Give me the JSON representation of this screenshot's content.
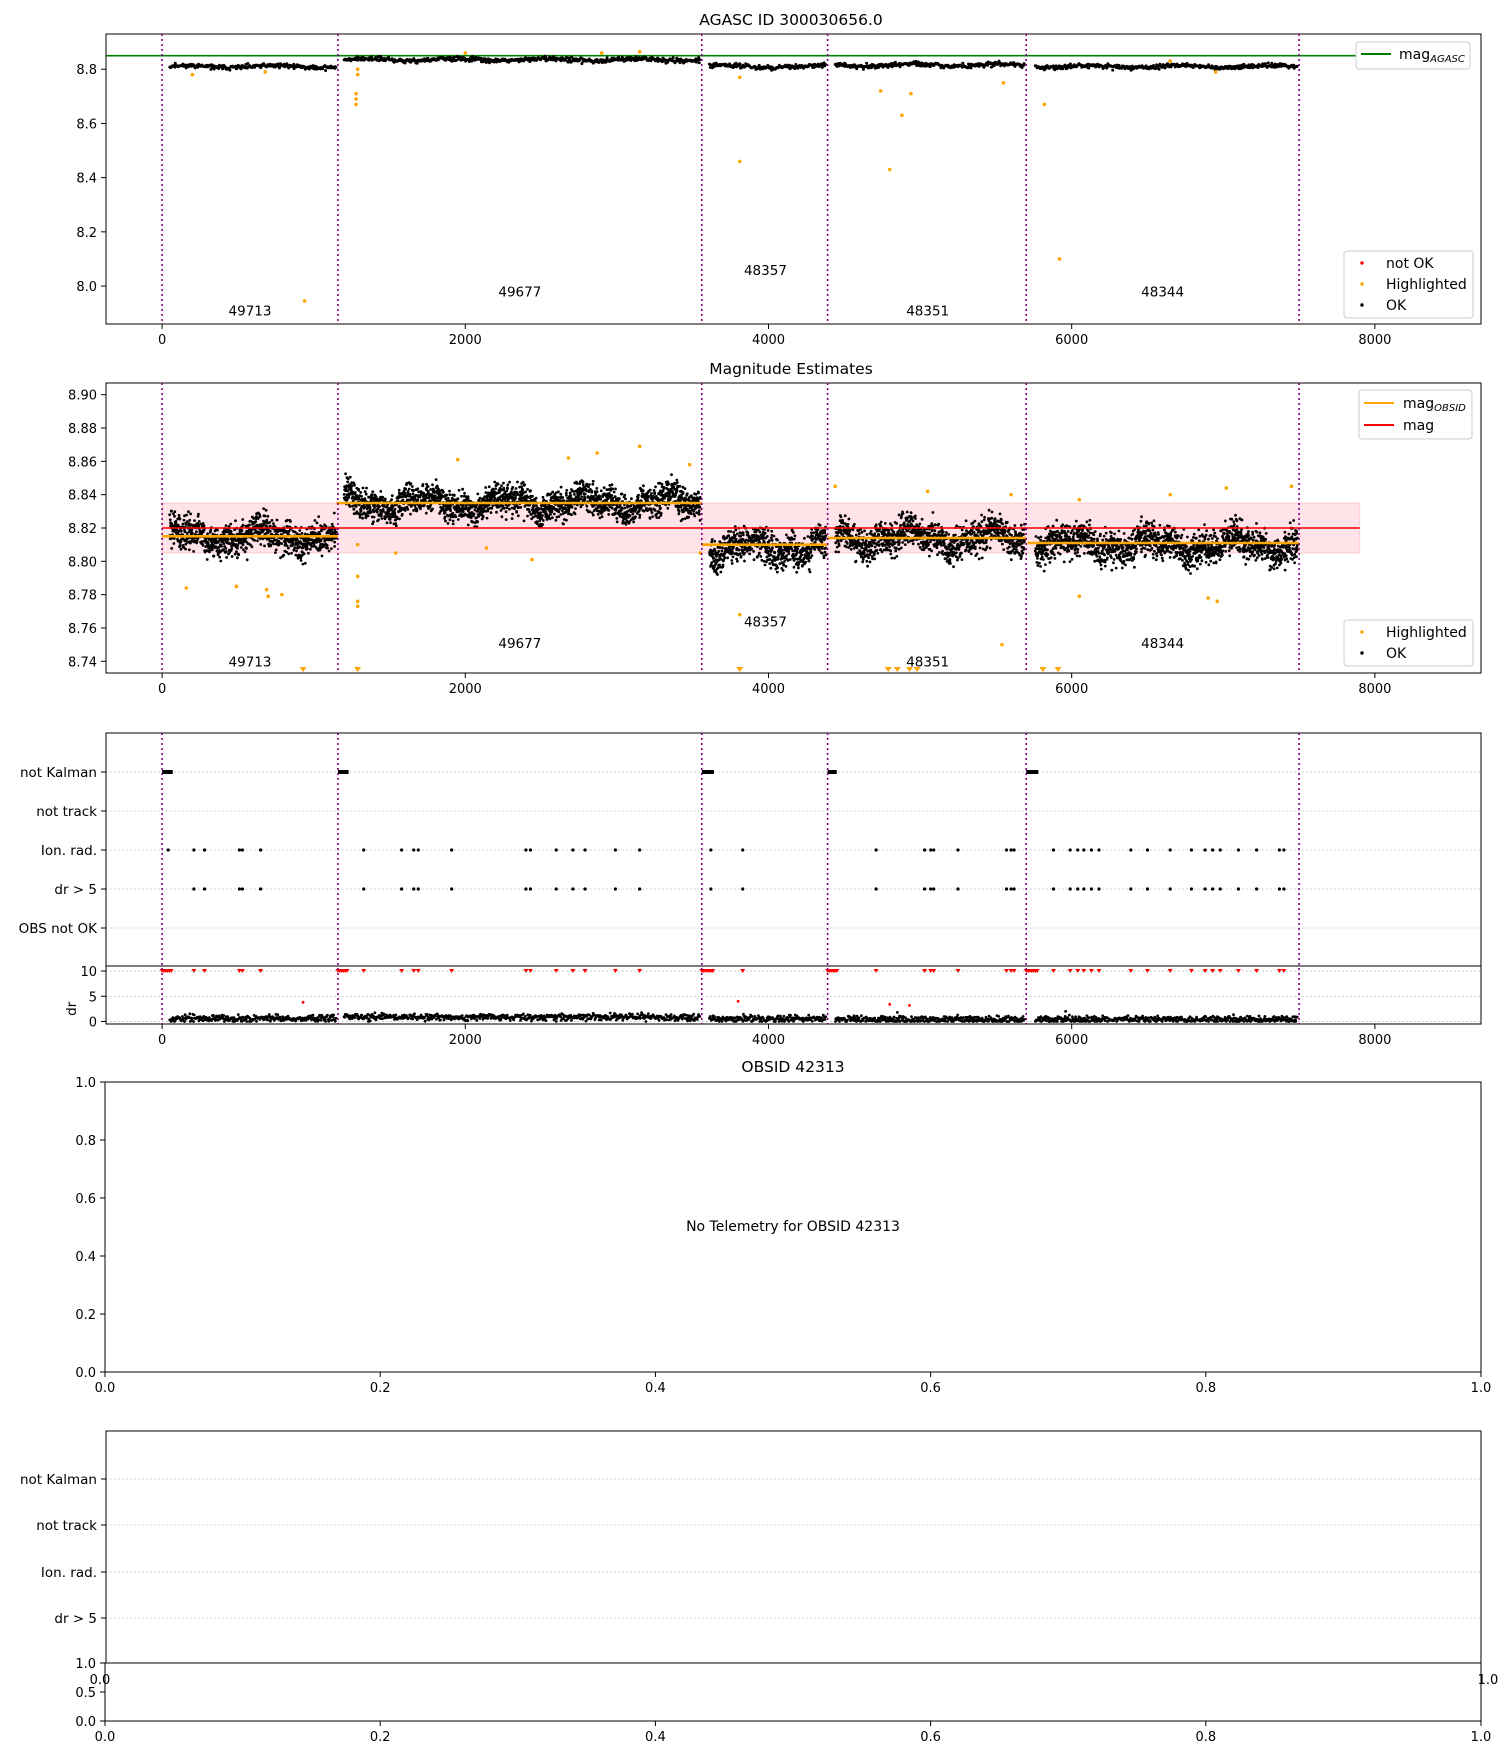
{
  "colors": {
    "ok": "#000000",
    "highlighted": "#ffa500",
    "not_ok": "#ff0000",
    "mag_agasc": "#007f00",
    "mag_line": "#ff0000",
    "mag_obsid": "#ffa500",
    "obsid_divider": "#800080",
    "band_fill": "#ffc0cb",
    "grid": "#b0b0b0"
  },
  "chart_data": [
    {
      "id": "agasc",
      "type": "scatter",
      "title": "AGASC ID 300030656.0",
      "xlim": [
        -370,
        8700
      ],
      "ylim": [
        7.86,
        8.93
      ],
      "xticks": [
        0,
        2000,
        4000,
        6000,
        8000
      ],
      "xtick_labels": [
        "0",
        "2000",
        "4000",
        "6000",
        "8000"
      ],
      "yticks": [
        8.0,
        8.2,
        8.4,
        8.6,
        8.8
      ],
      "ytick_labels": [
        "8.0",
        "8.2",
        "8.4",
        "8.6",
        "8.8"
      ],
      "mag_agasc": 8.85,
      "obsid_boundaries": [
        0,
        1160,
        3560,
        4390,
        5700,
        7500
      ],
      "obsid_labels": [
        {
          "label": "49713",
          "x": 580,
          "y": 7.91
        },
        {
          "label": "49677",
          "x": 2360,
          "y": 7.98
        },
        {
          "label": "48357",
          "x": 3980,
          "y": 8.06
        },
        {
          "label": "48351",
          "x": 5050,
          "y": 7.91
        },
        {
          "label": "48344",
          "x": 6600,
          "y": 7.98
        }
      ],
      "segments": [
        {
          "x0": 50,
          "x1": 1150,
          "level": 8.81,
          "noise": 0.012
        },
        {
          "x0": 1200,
          "x1": 3550,
          "level": 8.835,
          "noise": 0.012
        },
        {
          "x0": 3610,
          "x1": 4380,
          "level": 8.81,
          "noise": 0.012
        },
        {
          "x0": 4440,
          "x1": 5690,
          "level": 8.815,
          "noise": 0.012
        },
        {
          "x0": 5760,
          "x1": 7490,
          "level": 8.81,
          "noise": 0.012
        }
      ],
      "highlighted_points": [
        {
          "x": 940,
          "y": 7.945
        },
        {
          "x": 1280,
          "y": 8.69
        },
        {
          "x": 1280,
          "y": 8.71
        },
        {
          "x": 1280,
          "y": 8.67
        },
        {
          "x": 1290,
          "y": 8.78
        },
        {
          "x": 1290,
          "y": 8.8
        },
        {
          "x": 3810,
          "y": 8.46
        },
        {
          "x": 3810,
          "y": 8.77
        },
        {
          "x": 4740,
          "y": 8.72
        },
        {
          "x": 4800,
          "y": 8.43
        },
        {
          "x": 4880,
          "y": 8.63
        },
        {
          "x": 4940,
          "y": 8.71
        },
        {
          "x": 5550,
          "y": 8.75
        },
        {
          "x": 5820,
          "y": 8.67
        },
        {
          "x": 5920,
          "y": 8.1
        },
        {
          "x": 200,
          "y": 8.78
        },
        {
          "x": 680,
          "y": 8.79
        },
        {
          "x": 2000,
          "y": 8.86
        },
        {
          "x": 2900,
          "y": 8.86
        },
        {
          "x": 3150,
          "y": 8.865
        },
        {
          "x": 6650,
          "y": 8.83
        },
        {
          "x": 6950,
          "y": 8.79
        }
      ],
      "legend_top": [
        {
          "label": "mag",
          "sub": "AGASC"
        }
      ],
      "legend_bottom": [
        "not OK",
        "Highlighted",
        "OK"
      ]
    },
    {
      "id": "estimates",
      "type": "scatter",
      "title": "Magnitude Estimates",
      "xlim": [
        -370,
        8700
      ],
      "ylim": [
        8.733,
        8.907
      ],
      "xticks": [
        0,
        2000,
        4000,
        6000,
        8000
      ],
      "xtick_labels": [
        "0",
        "2000",
        "4000",
        "6000",
        "8000"
      ],
      "yticks": [
        8.74,
        8.76,
        8.78,
        8.8,
        8.82,
        8.84,
        8.86,
        8.88,
        8.9
      ],
      "ytick_labels": [
        "8.74",
        "8.76",
        "8.78",
        "8.80",
        "8.82",
        "8.84",
        "8.86",
        "8.88",
        "8.90"
      ],
      "mag": 8.82,
      "mag_band": [
        8.805,
        8.835
      ],
      "mag_line_x": [
        0,
        7900
      ],
      "obsid_boundaries": [
        0,
        1160,
        3560,
        4390,
        5700,
        7500
      ],
      "obsid_labels": [
        {
          "label": "49713",
          "x": 580,
          "y": 8.74
        },
        {
          "label": "49677",
          "x": 2360,
          "y": 8.751
        },
        {
          "label": "48357",
          "x": 3980,
          "y": 8.764
        },
        {
          "label": "48351",
          "x": 5050,
          "y": 8.74
        },
        {
          "label": "48344",
          "x": 6600,
          "y": 8.751
        }
      ],
      "segments": [
        {
          "x0": 50,
          "x1": 1150,
          "level": 8.815,
          "noise": 0.011,
          "mag_obsid": 8.815
        },
        {
          "x0": 1200,
          "x1": 3550,
          "level": 8.835,
          "noise": 0.01,
          "mag_obsid": 8.835
        },
        {
          "x0": 3610,
          "x1": 4380,
          "level": 8.808,
          "noise": 0.011,
          "mag_obsid": 8.81
        },
        {
          "x0": 4440,
          "x1": 5690,
          "level": 8.814,
          "noise": 0.011,
          "mag_obsid": 8.814
        },
        {
          "x0": 5760,
          "x1": 7490,
          "level": 8.81,
          "noise": 0.011,
          "mag_obsid": 8.811
        }
      ],
      "highlighted_points": [
        {
          "x": 160,
          "y": 8.784
        },
        {
          "x": 490,
          "y": 8.785
        },
        {
          "x": 690,
          "y": 8.783
        },
        {
          "x": 700,
          "y": 8.779
        },
        {
          "x": 790,
          "y": 8.78
        },
        {
          "x": 1290,
          "y": 8.791
        },
        {
          "x": 1290,
          "y": 8.776
        },
        {
          "x": 1290,
          "y": 8.773
        },
        {
          "x": 1290,
          "y": 8.81
        },
        {
          "x": 1540,
          "y": 8.805
        },
        {
          "x": 1950,
          "y": 8.861
        },
        {
          "x": 2140,
          "y": 8.808
        },
        {
          "x": 2440,
          "y": 8.801
        },
        {
          "x": 2680,
          "y": 8.862
        },
        {
          "x": 2870,
          "y": 8.865
        },
        {
          "x": 3150,
          "y": 8.869
        },
        {
          "x": 3480,
          "y": 8.858
        },
        {
          "x": 3550,
          "y": 8.805
        },
        {
          "x": 3810,
          "y": 8.768
        },
        {
          "x": 4440,
          "y": 8.845
        },
        {
          "x": 5050,
          "y": 8.842
        },
        {
          "x": 5540,
          "y": 8.75
        },
        {
          "x": 5600,
          "y": 8.84
        },
        {
          "x": 6050,
          "y": 8.779
        },
        {
          "x": 6050,
          "y": 8.837
        },
        {
          "x": 6650,
          "y": 8.84
        },
        {
          "x": 6900,
          "y": 8.778
        },
        {
          "x": 6960,
          "y": 8.776
        },
        {
          "x": 7020,
          "y": 8.844
        },
        {
          "x": 7450,
          "y": 8.845
        }
      ],
      "lower_markers_x": [
        930,
        1290,
        3810,
        4790,
        4850,
        4930,
        4980,
        5810,
        5910
      ],
      "legend_top": [
        {
          "label": "mag",
          "sub": "OBSID"
        },
        {
          "label": "mag",
          "sub": ""
        }
      ],
      "legend_bottom": [
        "Highlighted",
        "OK"
      ]
    },
    {
      "id": "flags",
      "type": "scatter",
      "xlim": [
        -370,
        8700
      ],
      "ylim_dr": [
        -0.5,
        11
      ],
      "xticks": [
        0,
        2000,
        4000,
        6000,
        8000
      ],
      "xtick_labels": [
        "0",
        "2000",
        "4000",
        "6000",
        "8000"
      ],
      "flag_rows": [
        "not Kalman",
        "not track",
        "Ion. rad.",
        "dr > 5",
        "OBS not OK"
      ],
      "dr_yticks": [
        0,
        5,
        10
      ],
      "dr_ytick_labels": [
        "0",
        "5",
        "10"
      ],
      "dr_ylabel": "dr",
      "obsid_boundaries": [
        0,
        1160,
        3560,
        4390,
        5700,
        7500
      ],
      "not_kalman_ranges": [
        [
          0,
          70
        ],
        [
          1160,
          1230
        ],
        [
          3560,
          3640
        ],
        [
          4390,
          4450
        ],
        [
          5700,
          5780
        ]
      ],
      "ion_rad_x": [
        40,
        210,
        280,
        510,
        530,
        650,
        1330,
        1580,
        1660,
        1690,
        1910,
        2400,
        2430,
        2600,
        2710,
        2790,
        2990,
        3150,
        3620,
        3830,
        4710,
        5030,
        5070,
        5090,
        5250,
        5570,
        5600,
        5620,
        5880,
        5990,
        6040,
        6080,
        6130,
        6180,
        6390,
        6500,
        6650,
        6790,
        6880,
        6930,
        6980,
        7100,
        7220,
        7370,
        7400
      ],
      "dr_gt5_x": [
        210,
        280,
        510,
        530,
        650,
        1330,
        1580,
        1660,
        1690,
        1910,
        2400,
        2430,
        2600,
        2710,
        2790,
        2990,
        3150,
        3620,
        3830,
        4710,
        5030,
        5070,
        5090,
        5250,
        5570,
        5600,
        5620,
        5880,
        5990,
        6040,
        6080,
        6130,
        6180,
        6390,
        6500,
        6650,
        6790,
        6880,
        6930,
        6980,
        7100,
        7220,
        7370,
        7400
      ],
      "dr_outliers": [
        {
          "x": 930,
          "y": 3.8
        },
        {
          "x": 3800,
          "y": 4.0
        },
        {
          "x": 4800,
          "y": 3.4
        },
        {
          "x": 4930,
          "y": 3.2
        },
        {
          "x": 4850,
          "y": 1.8
        },
        {
          "x": 5960,
          "y": 2.0
        }
      ],
      "dr_segments": [
        {
          "x0": 50,
          "x1": 1150,
          "level": 0.6
        },
        {
          "x0": 1200,
          "x1": 3550,
          "level": 0.9
        },
        {
          "x0": 3610,
          "x1": 4380,
          "level": 0.5
        },
        {
          "x0": 4440,
          "x1": 5690,
          "level": 0.4
        },
        {
          "x0": 5760,
          "x1": 7490,
          "level": 0.4
        }
      ]
    },
    {
      "id": "obsid",
      "type": "scatter",
      "title": "OBSID 42313",
      "xlim": [
        0,
        1
      ],
      "ylim": [
        0,
        1
      ],
      "xticks": [
        0,
        0.2,
        0.4,
        0.6,
        0.8,
        1.0
      ],
      "xtick_labels": [
        "0.0",
        "0.2",
        "0.4",
        "0.6",
        "0.8",
        "1.0"
      ],
      "yticks": [
        0,
        0.2,
        0.4,
        0.6,
        0.8,
        1.0
      ],
      "ytick_labels": [
        "0.0",
        "0.2",
        "0.4",
        "0.6",
        "0.8",
        "1.0"
      ],
      "message": "No Telemetry for OBSID 42313"
    },
    {
      "id": "obsid_flags",
      "type": "scatter",
      "flag_rows": [
        "not Kalman",
        "not track",
        "Ion. rad.",
        "dr > 5"
      ],
      "overlap_tick_labels": [
        "0.0",
        "1.0"
      ],
      "sub_yticks": [
        0,
        0.5,
        1.0
      ],
      "sub_ytick_labels": [
        "0.0",
        "0.5",
        "1.0"
      ],
      "xticks": [
        0,
        0.2,
        0.4,
        0.6,
        0.8,
        1.0
      ],
      "xtick_labels": [
        "0.0",
        "0.2",
        "0.4",
        "0.6",
        "0.8",
        "1.0"
      ]
    }
  ]
}
